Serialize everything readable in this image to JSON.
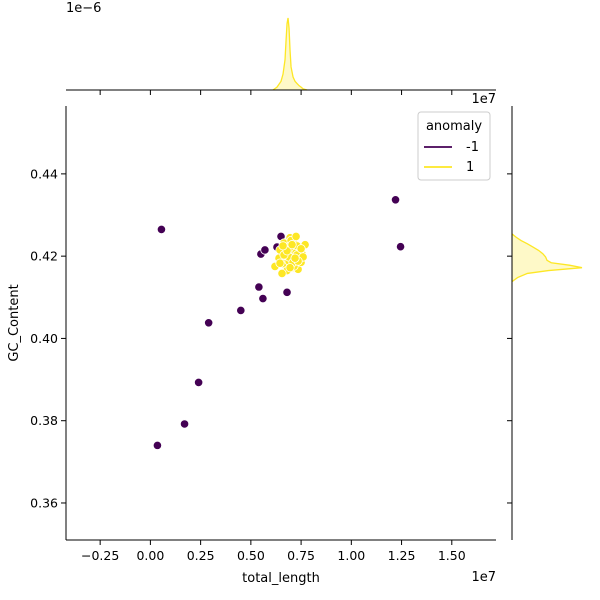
{
  "chart_data": {
    "type": "scatter",
    "xlabel": "total_length",
    "ylabel": "GC_Content",
    "x_offset_text": "1e7",
    "y_offset_text": "1e7",
    "top_margin_offset_text": "1e−6",
    "xlim": [
      -0.42,
      1.72
    ],
    "ylim": [
      0.351,
      0.4565
    ],
    "x_ticks": [
      -0.25,
      0.0,
      0.25,
      0.5,
      0.75,
      1.0,
      1.25,
      1.5
    ],
    "x_tick_labels": [
      "−0.25",
      "0.00",
      "0.25",
      "0.50",
      "0.75",
      "1.00",
      "1.25",
      "1.50"
    ],
    "y_ticks": [
      0.36,
      0.38,
      0.4,
      0.42,
      0.44
    ],
    "y_tick_labels": [
      "0.36",
      "0.38",
      "0.40",
      "0.42",
      "0.44"
    ],
    "grid": false,
    "legend": {
      "title": "anomaly",
      "placement": "top-right",
      "entries": [
        {
          "label": "-1",
          "color": "#440154"
        },
        {
          "label": "1",
          "color": "#fde725"
        }
      ]
    },
    "series": [
      {
        "name": "-1",
        "color": "#440154",
        "points": [
          [
            0.035,
            0.374
          ],
          [
            0.17,
            0.3792
          ],
          [
            0.24,
            0.3893
          ],
          [
            0.29,
            0.4038
          ],
          [
            0.45,
            0.4068
          ],
          [
            0.54,
            0.4125
          ],
          [
            0.56,
            0.4097
          ],
          [
            0.68,
            0.4112
          ],
          [
            0.055,
            0.4265
          ],
          [
            0.55,
            0.4205
          ],
          [
            0.57,
            0.4215
          ],
          [
            0.63,
            0.4222
          ],
          [
            0.65,
            0.4248
          ],
          [
            1.22,
            0.4337
          ],
          [
            1.245,
            0.4223
          ]
        ]
      },
      {
        "name": "1",
        "color": "#fde725",
        "points": [
          [
            0.62,
            0.4175
          ],
          [
            0.64,
            0.4195
          ],
          [
            0.645,
            0.4215
          ],
          [
            0.66,
            0.4182
          ],
          [
            0.665,
            0.4232
          ],
          [
            0.68,
            0.4165
          ],
          [
            0.685,
            0.4205
          ],
          [
            0.69,
            0.4188
          ],
          [
            0.695,
            0.4245
          ],
          [
            0.7,
            0.4215
          ],
          [
            0.705,
            0.4172
          ],
          [
            0.71,
            0.4196
          ],
          [
            0.715,
            0.4232
          ],
          [
            0.72,
            0.4182
          ],
          [
            0.725,
            0.4208
          ],
          [
            0.73,
            0.4225
          ],
          [
            0.735,
            0.4168
          ],
          [
            0.74,
            0.4195
          ],
          [
            0.745,
            0.4212
          ],
          [
            0.75,
            0.4185
          ],
          [
            0.755,
            0.4205
          ],
          [
            0.77,
            0.4228
          ],
          [
            0.655,
            0.4158
          ],
          [
            0.675,
            0.4222
          ],
          [
            0.7,
            0.4238
          ],
          [
            0.715,
            0.4176
          ],
          [
            0.73,
            0.4203
          ],
          [
            0.69,
            0.4198
          ],
          [
            0.71,
            0.4185
          ],
          [
            0.665,
            0.4203
          ],
          [
            0.725,
            0.4248
          ],
          [
            0.68,
            0.4213
          ],
          [
            0.645,
            0.4183
          ],
          [
            0.76,
            0.4198
          ],
          [
            0.705,
            0.4228
          ],
          [
            0.735,
            0.4188
          ],
          [
            0.695,
            0.4172
          ],
          [
            0.75,
            0.4218
          ],
          [
            0.66,
            0.4225
          ],
          [
            0.72,
            0.4195
          ]
        ]
      }
    ],
    "top_marginal": {
      "type": "kde",
      "series": "1",
      "peak_x": 0.685,
      "x": [
        0.61,
        0.63,
        0.65,
        0.66,
        0.67,
        0.675,
        0.68,
        0.685,
        0.69,
        0.695,
        0.7,
        0.71,
        0.72,
        0.73,
        0.74,
        0.75,
        0.76,
        0.78
      ],
      "density": [
        0.0,
        0.04,
        0.12,
        0.22,
        0.42,
        0.68,
        0.92,
        1.0,
        0.86,
        0.55,
        0.32,
        0.18,
        0.12,
        0.09,
        0.06,
        0.04,
        0.015,
        0.0
      ]
    },
    "right_marginal": {
      "type": "kde",
      "series": "1",
      "y": [
        0.4138,
        0.4148,
        0.4158,
        0.4165,
        0.4172,
        0.4178,
        0.4184,
        0.419,
        0.4198,
        0.4206,
        0.4214,
        0.4222,
        0.423,
        0.4238,
        0.4246,
        0.4254
      ],
      "density": [
        0.0,
        0.08,
        0.22,
        0.52,
        1.0,
        0.82,
        0.56,
        0.5,
        0.48,
        0.44,
        0.38,
        0.3,
        0.22,
        0.13,
        0.06,
        0.0
      ]
    }
  }
}
